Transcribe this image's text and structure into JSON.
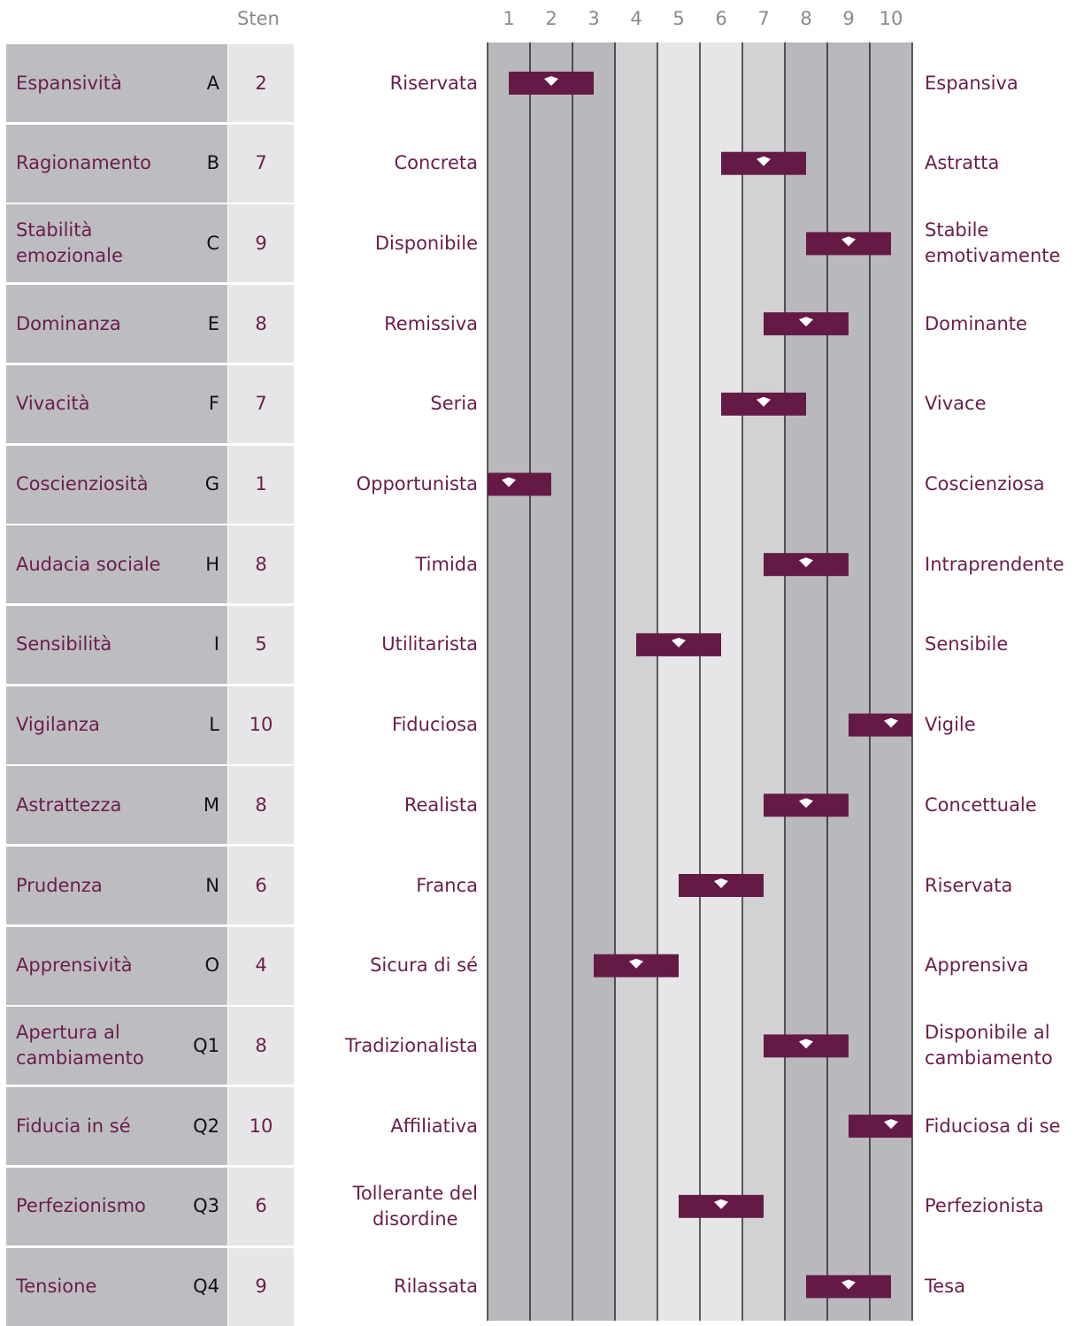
{
  "header": {
    "sten": "Sten"
  },
  "scale": [
    1,
    2,
    3,
    4,
    5,
    6,
    7,
    8,
    9,
    10
  ],
  "rows": [
    {
      "factor": "Espansività",
      "code": "A",
      "sten": 2,
      "low": "Riservata",
      "high": "Espansiva"
    },
    {
      "factor": "Ragionamento",
      "code": "B",
      "sten": 7,
      "low": "Concreta",
      "high": "Astratta"
    },
    {
      "factor": "Stabilità\nemozionale",
      "code": "C",
      "sten": 9,
      "low": "Disponibile",
      "high": "Stabile\nemotivamente"
    },
    {
      "factor": "Dominanza",
      "code": "E",
      "sten": 8,
      "low": "Remissiva",
      "high": "Dominante"
    },
    {
      "factor": "Vivacità",
      "code": "F",
      "sten": 7,
      "low": "Seria",
      "high": "Vivace"
    },
    {
      "factor": "Coscienziosità",
      "code": "G",
      "sten": 1,
      "low": "Opportunista",
      "high": "Coscienziosa"
    },
    {
      "factor": "Audacia sociale",
      "code": "H",
      "sten": 8,
      "low": "Timida",
      "high": "Intraprendente"
    },
    {
      "factor": "Sensibilità",
      "code": "I",
      "sten": 5,
      "low": "Utilitarista",
      "high": "Sensibile"
    },
    {
      "factor": "Vigilanza",
      "code": "L",
      "sten": 10,
      "low": "Fiduciosa",
      "high": "Vigile"
    },
    {
      "factor": "Astrattezza",
      "code": "M",
      "sten": 8,
      "low": "Realista",
      "high": "Concettuale"
    },
    {
      "factor": "Prudenza",
      "code": "N",
      "sten": 6,
      "low": "Franca",
      "high": "Riservata"
    },
    {
      "factor": "Apprensività",
      "code": "O",
      "sten": 4,
      "low": "Sicura di sé",
      "high": "Apprensiva"
    },
    {
      "factor": "Apertura al\ncambiamento",
      "code": "Q1",
      "sten": 8,
      "low": "Tradizionalista",
      "high": "Disponibile al\ncambiamento"
    },
    {
      "factor": "Fiducia in sé",
      "code": "Q2",
      "sten": 10,
      "low": "Affiliativa",
      "high": "Fiduciosa di se"
    },
    {
      "factor": "Perfezionismo",
      "code": "Q3",
      "sten": 6,
      "low": "Tollerante del\ndisordine",
      "high": "Perfezionista"
    },
    {
      "factor": "Tensione",
      "code": "Q4",
      "sten": 9,
      "low": "Rilassata",
      "high": "Tesa"
    }
  ]
}
